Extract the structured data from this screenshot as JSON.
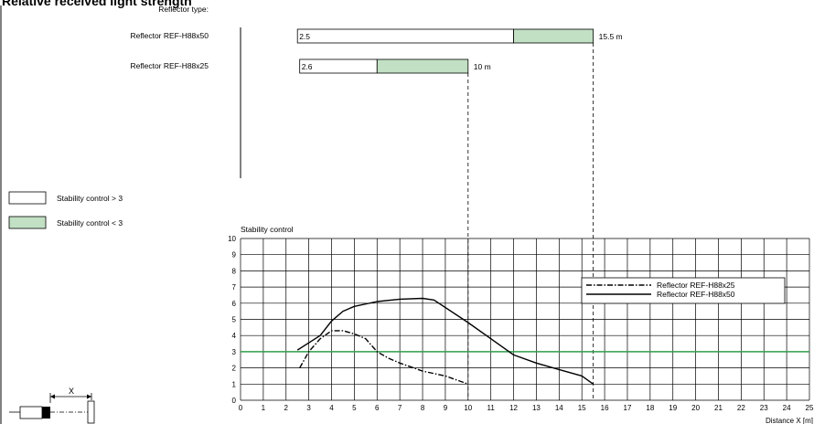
{
  "title": "Relative received light strength",
  "reflector_type_label": "Reflector type:",
  "reflectors": [
    {
      "name": "Reflector REF-H88x50",
      "min_label": "2.5",
      "min": 2.5,
      "stability_switch": 12.0,
      "max": 15.5,
      "max_label": "15.5 m"
    },
    {
      "name": "Reflector REF-H88x25",
      "min_label": "2.6",
      "min": 2.6,
      "stability_switch": 6.0,
      "max": 10,
      "max_label": "10 m"
    }
  ],
  "legend_boxes": [
    {
      "label": "Stability control > 3",
      "color": "#ffffff"
    },
    {
      "label": "Stability control < 3",
      "color": "#c2e0c3"
    }
  ],
  "colors": {
    "green_fill": "#c2e0c3",
    "threshold_line": "#2e9e4a",
    "grid": "#000000"
  },
  "sensor_diagram": {
    "distance_label": "X"
  },
  "chart_data": {
    "type": "line",
    "ylabel": "Stability control",
    "xlabel": "Distance X [m]",
    "xlim": [
      0,
      25
    ],
    "ylim": [
      0,
      10
    ],
    "x_ticks": [
      0,
      1,
      2,
      3,
      4,
      5,
      6,
      7,
      8,
      9,
      10,
      11,
      12,
      13,
      14,
      15,
      16,
      17,
      18,
      19,
      20,
      21,
      22,
      23,
      24,
      25
    ],
    "y_ticks": [
      0,
      1,
      2,
      3,
      4,
      5,
      6,
      7,
      8,
      9,
      10
    ],
    "grid": true,
    "threshold": 3,
    "legend_position": "right",
    "series": [
      {
        "name": "Reflector REF-H88x25",
        "style": "dashdot",
        "x": [
          2.6,
          3.0,
          3.5,
          4.0,
          4.5,
          5.0,
          5.5,
          6.0,
          6.5,
          7.0,
          8.0,
          9.0,
          10.0
        ],
        "y": [
          2.0,
          3.0,
          3.8,
          4.3,
          4.3,
          4.1,
          3.8,
          3.0,
          2.6,
          2.3,
          1.8,
          1.5,
          1.0
        ]
      },
      {
        "name": "Reflector REF-H88x50",
        "style": "solid",
        "x": [
          2.5,
          3.5,
          4.0,
          4.5,
          5.0,
          6.0,
          7.0,
          8.0,
          8.5,
          10.0,
          11.0,
          12.0,
          13.0,
          14.0,
          15.0,
          15.5
        ],
        "y": [
          3.1,
          4.0,
          4.9,
          5.5,
          5.8,
          6.1,
          6.25,
          6.3,
          6.2,
          4.8,
          3.8,
          2.8,
          2.3,
          1.9,
          1.5,
          1.0
        ]
      }
    ]
  }
}
